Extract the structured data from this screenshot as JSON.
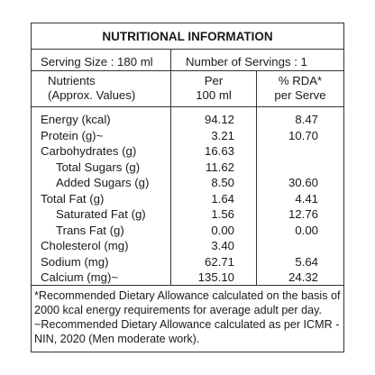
{
  "title": "NUTRITIONAL INFORMATION",
  "serving_size": "Serving Size : 180 ml",
  "servings": "Number of Servings : 1",
  "header": {
    "nutrients_line1": "Nutrients",
    "nutrients_line2": "(Approx. Values)",
    "per_line1": "Per",
    "per_line2": "100 ml",
    "rda_line1": "% RDA*",
    "rda_line2": "per Serve"
  },
  "rows": [
    {
      "name": "Energy (kcal)",
      "per100": "94.12",
      "rda": "8.47"
    },
    {
      "name": "Protein (g)~",
      "per100": "3.21",
      "rda": "10.70"
    },
    {
      "name": "Carbohydrates (g)",
      "per100": "16.63",
      "rda": ""
    },
    {
      "name": "Total Sugars (g)",
      "per100": "11.62",
      "rda": ""
    },
    {
      "name": "Added Sugars (g)",
      "per100": "8.50",
      "rda": "30.60"
    },
    {
      "name": "Total Fat (g)",
      "per100": "1.64",
      "rda": "4.41"
    },
    {
      "name": "Saturated Fat (g)",
      "per100": "1.56",
      "rda": "12.76"
    },
    {
      "name": "Trans Fat (g)",
      "per100": "0.00",
      "rda": "0.00"
    },
    {
      "name": "Cholesterol (mg)",
      "per100": "3.40",
      "rda": ""
    },
    {
      "name": "Sodium (mg)",
      "per100": "62.71",
      "rda": "5.64"
    },
    {
      "name": "Calcium (mg)~",
      "per100": "135.10",
      "rda": "24.32"
    }
  ],
  "footnotes": [
    "*Recommended Dietary Allowance calculated on the basis of",
    "2000 kcal energy requirements for average adult per day.",
    "~Recommended Dietary Allowance calculated as per ICMR -",
    "NIN, 2020 (Men moderate work)."
  ]
}
